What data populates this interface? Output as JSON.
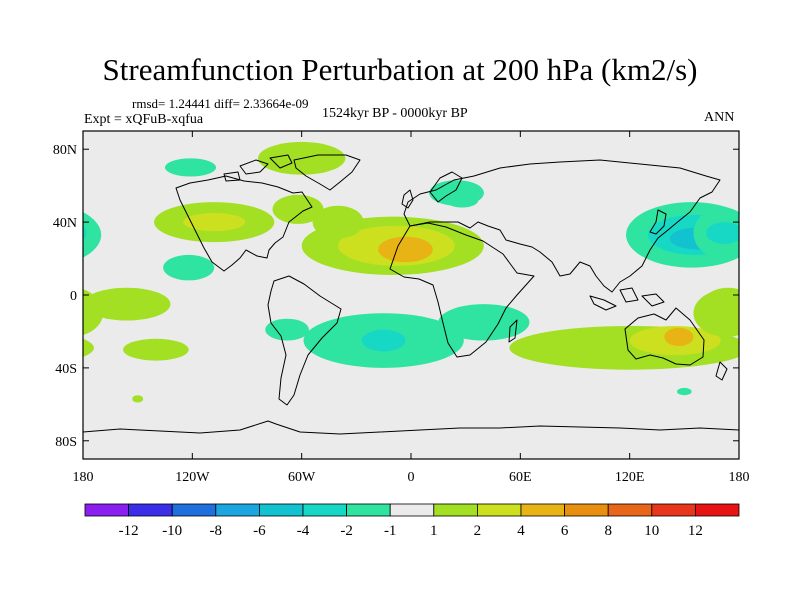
{
  "header": {
    "title": "Streamfunction Perturbation at 200 hPa (km2/s)",
    "rmsd_line": "rmsd= 1.24441 diff= 2.33664e-09",
    "experiment": "Expt = xQFuB-xqfua",
    "period": "1524kyr BP - 0000kyr BP",
    "season": "ANN"
  },
  "chart_data": {
    "type": "heatmap",
    "title": "Streamfunction Perturbation at 200 hPa (km2/s)",
    "subtitle": "1524kyr BP - 0000kyr BP",
    "projection": "cylindrical equidistant",
    "xlim": [
      -180,
      180
    ],
    "ylim": [
      -90,
      90
    ],
    "x_ticks": [
      {
        "value": -180,
        "label": "180"
      },
      {
        "value": -120,
        "label": "120W"
      },
      {
        "value": -60,
        "label": "60W"
      },
      {
        "value": 0,
        "label": "0"
      },
      {
        "value": 60,
        "label": "60E"
      },
      {
        "value": 120,
        "label": "120E"
      },
      {
        "value": 180,
        "label": "180"
      }
    ],
    "y_ticks": [
      {
        "value": 80,
        "label": "80N"
      },
      {
        "value": 40,
        "label": "40N"
      },
      {
        "value": 0,
        "label": "0"
      },
      {
        "value": -40,
        "label": "40S"
      },
      {
        "value": -80,
        "label": "80S"
      }
    ],
    "colorbar": {
      "levels": [
        "-12",
        "-10",
        "-8",
        "-6",
        "-4",
        "-2",
        "-1",
        "1",
        "2",
        "4",
        "6",
        "8",
        "10",
        "12"
      ],
      "colors": [
        "#8a1ff0",
        "#3a2ee8",
        "#1f6fdc",
        "#1ba6e0",
        "#12c2d0",
        "#17d8c4",
        "#2fe3a0",
        "#ebebeb",
        "#a3e024",
        "#cde01f",
        "#e8b314",
        "#e88f10",
        "#e8661a",
        "#e8361c",
        "#e81414"
      ]
    },
    "regions": [
      {
        "lon": -10,
        "lat": 27,
        "rx": 50,
        "ry": 16,
        "level": 1
      },
      {
        "lon": -8,
        "lat": 27,
        "rx": 32,
        "ry": 11,
        "level": 2
      },
      {
        "lon": -3,
        "lat": 25,
        "rx": 15,
        "ry": 7,
        "level": 3
      },
      {
        "lon": -108,
        "lat": 40,
        "rx": 33,
        "ry": 11,
        "level": 1
      },
      {
        "lon": -108,
        "lat": 40,
        "rx": 17,
        "ry": 5,
        "level": 2
      },
      {
        "lon": -62,
        "lat": 47,
        "rx": 14,
        "ry": 8,
        "level": 1
      },
      {
        "lon": -40,
        "lat": 40,
        "rx": 14,
        "ry": 9,
        "level": 1
      },
      {
        "lon": -122,
        "lat": 15,
        "rx": 14,
        "ry": 7,
        "level": -1
      },
      {
        "lon": -156,
        "lat": -5,
        "rx": 24,
        "ry": 9,
        "level": 1
      },
      {
        "lon": -186,
        "lat": -5,
        "rx": 14,
        "ry": 9,
        "level": 1
      },
      {
        "lon": -140,
        "lat": -30,
        "rx": 18,
        "ry": 6,
        "level": 1
      },
      {
        "lon": -15,
        "lat": -25,
        "rx": 44,
        "ry": 15,
        "level": -1
      },
      {
        "lon": -15,
        "lat": -25,
        "rx": 12,
        "ry": 6,
        "level": -2
      },
      {
        "lon": -68,
        "lat": -19,
        "rx": 12,
        "ry": 6,
        "level": -1
      },
      {
        "lon": 40,
        "lat": -15,
        "rx": 25,
        "ry": 10,
        "level": -1
      },
      {
        "lon": -150,
        "lat": -57,
        "rx": 3,
        "ry": 2,
        "level": 1
      },
      {
        "lon": 154,
        "lat": 33,
        "rx": 36,
        "ry": 18,
        "level": -1
      },
      {
        "lon": 156,
        "lat": 33,
        "rx": 26,
        "ry": 11,
        "level": -2
      },
      {
        "lon": 157,
        "lat": 31,
        "rx": 15,
        "ry": 6,
        "level": -3
      },
      {
        "lon": -189,
        "lat": 34,
        "rx": 16,
        "ry": 14,
        "level": -1
      },
      {
        "lon": -188,
        "lat": 34,
        "rx": 10,
        "ry": 6,
        "level": -2
      },
      {
        "lon": 120,
        "lat": -29,
        "rx": 66,
        "ry": 12,
        "level": 1
      },
      {
        "lon": 145,
        "lat": -25,
        "rx": 25,
        "ry": 8,
        "level": 2
      },
      {
        "lon": 147,
        "lat": -23,
        "rx": 8,
        "ry": 5,
        "level": 3
      },
      {
        "lon": 173,
        "lat": -10,
        "rx": 18,
        "ry": 13,
        "level": 1
      },
      {
        "lon": 25,
        "lat": 56,
        "rx": 15,
        "ry": 7,
        "level": -1
      },
      {
        "lon": 28,
        "lat": 52,
        "rx": 9,
        "ry": 4,
        "level": -1
      },
      {
        "lon": -60,
        "lat": 75,
        "rx": 24,
        "ry": 9,
        "level": 1
      },
      {
        "lon": -121,
        "lat": 70,
        "rx": 14,
        "ry": 5,
        "level": -1
      },
      {
        "lon": 150,
        "lat": -53,
        "rx": 4,
        "ry": 2,
        "level": -1
      }
    ]
  }
}
